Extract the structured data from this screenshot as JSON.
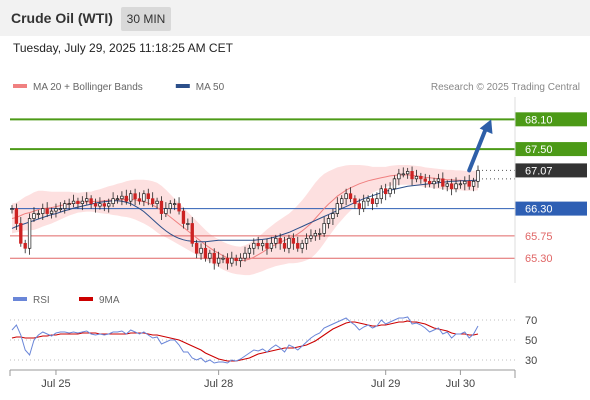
{
  "header": {
    "instrument": "Crude Oil (WTI)",
    "timeframe": "30 MIN"
  },
  "timestamp": "Tuesday, July 29, 2025 11:18:25 AM CET",
  "attribution": "Research © 2025 Trading Central",
  "colors": {
    "support": "#e06666",
    "resistance": "#4c9a17",
    "last_price": "#333333",
    "pivot": "#2e5fb4",
    "ma20": "#f08080",
    "ma50": "#2c4f8a",
    "bollinger_fill": "#fde0e0",
    "rsi": "#6a86d8",
    "rsi_ma": "#cc0000",
    "arrow": "#2e5fa8"
  },
  "chart_data": [
    {
      "type": "candlestick",
      "legend": [
        {
          "name": "MA 20 + Bollinger Bands",
          "color": "#f08080"
        },
        {
          "name": "MA 50",
          "color": "#2c4f8a"
        }
      ],
      "ylim": [
        64.8,
        68.55
      ],
      "x_ticks": [
        {
          "label": "Jul 25",
          "index": 10
        },
        {
          "label": "Jul 28",
          "index": 47
        },
        {
          "label": "Jul 29",
          "index": 85
        },
        {
          "label": "Jul 30",
          "index": 102
        }
      ],
      "levels": [
        {
          "label": "68.10",
          "value": 68.1,
          "kind": "resistance"
        },
        {
          "label": "67.50",
          "value": 67.5,
          "kind": "resistance"
        },
        {
          "label": "67.07",
          "value": 67.07,
          "kind": "last"
        },
        {
          "label": "66.30",
          "value": 66.3,
          "kind": "pivot"
        },
        {
          "label": "65.75",
          "value": 65.75,
          "kind": "support"
        },
        {
          "label": "65.30",
          "value": 65.3,
          "kind": "support"
        }
      ],
      "arrow": {
        "from_index": 104,
        "from_value": 67.07,
        "to_index": 109,
        "to_value": 68.1
      },
      "close": [
        66.3,
        66.0,
        65.6,
        65.5,
        66.1,
        66.2,
        66.2,
        66.3,
        66.2,
        66.25,
        66.3,
        66.3,
        66.4,
        66.4,
        66.45,
        66.4,
        66.45,
        66.5,
        66.4,
        66.35,
        66.4,
        66.35,
        66.4,
        66.5,
        66.5,
        66.55,
        66.45,
        66.6,
        66.5,
        66.45,
        66.6,
        66.5,
        66.4,
        66.45,
        66.2,
        66.3,
        66.4,
        66.4,
        66.25,
        66.0,
        66.0,
        65.6,
        65.4,
        65.5,
        65.3,
        65.4,
        65.2,
        65.3,
        65.3,
        65.2,
        65.3,
        65.25,
        65.3,
        65.4,
        65.5,
        65.6,
        65.55,
        65.6,
        65.5,
        65.6,
        65.7,
        65.6,
        65.5,
        65.7,
        65.6,
        65.5,
        65.6,
        65.7,
        65.75,
        65.8,
        65.8,
        66.0,
        66.1,
        66.2,
        66.4,
        66.5,
        66.6,
        66.5,
        66.4,
        66.3,
        66.45,
        66.5,
        66.4,
        66.5,
        66.7,
        66.6,
        66.7,
        66.9,
        67.0,
        67.0,
        67.05,
        66.9,
        66.95,
        66.9,
        66.85,
        66.8,
        66.85,
        66.9,
        66.75,
        66.8,
        66.7,
        66.8,
        66.8,
        66.85,
        66.75,
        66.85,
        67.07
      ],
      "ma20": [
        66.1,
        66.12,
        66.16,
        66.2,
        66.22,
        66.25,
        66.28,
        66.3,
        66.31,
        66.32,
        66.34,
        66.36,
        66.38,
        66.4,
        66.41,
        66.42,
        66.43,
        66.44,
        66.44,
        66.45,
        66.45,
        66.46,
        66.47,
        66.47,
        66.48,
        66.48,
        66.49,
        66.49,
        66.48,
        66.46,
        66.44,
        66.41,
        66.37,
        66.32,
        66.26,
        66.2,
        66.13,
        66.06,
        65.99,
        65.92,
        65.85,
        65.78,
        65.71,
        65.64,
        65.57,
        65.51,
        65.45,
        65.4,
        65.35,
        65.31,
        65.28,
        65.26,
        65.25,
        65.26,
        65.28,
        65.32,
        65.37,
        65.42,
        65.48,
        65.53,
        65.58,
        65.62,
        65.66,
        65.7,
        65.74,
        65.79,
        65.85,
        65.92,
        66.0,
        66.1,
        66.2,
        66.3,
        66.39,
        66.47,
        66.55,
        66.61,
        66.67,
        66.72,
        66.76,
        66.8,
        66.83,
        66.86,
        66.88,
        66.9,
        66.92,
        66.94,
        66.96,
        66.97,
        66.98,
        66.98,
        66.98,
        66.97,
        66.96,
        66.95,
        66.93,
        66.92,
        66.91,
        66.9,
        66.89,
        66.88,
        66.88,
        66.87,
        66.87,
        66.86,
        66.86,
        66.86,
        66.87
      ],
      "bb_width": [
        0.3,
        0.3,
        0.32,
        0.34,
        0.36,
        0.38,
        0.38,
        0.36,
        0.34,
        0.32,
        0.3,
        0.28,
        0.26,
        0.24,
        0.22,
        0.2,
        0.2,
        0.2,
        0.2,
        0.22,
        0.24,
        0.26,
        0.28,
        0.3,
        0.32,
        0.34,
        0.36,
        0.38,
        0.4,
        0.42,
        0.44,
        0.46,
        0.48,
        0.5,
        0.5,
        0.48,
        0.46,
        0.44,
        0.42,
        0.4,
        0.38,
        0.36,
        0.34,
        0.32,
        0.3,
        0.28,
        0.28,
        0.28,
        0.28,
        0.28,
        0.28,
        0.28,
        0.28,
        0.3,
        0.32,
        0.34,
        0.36,
        0.38,
        0.4,
        0.42,
        0.44,
        0.46,
        0.48,
        0.5,
        0.54,
        0.58,
        0.62,
        0.66,
        0.7,
        0.72,
        0.72,
        0.7,
        0.66,
        0.62,
        0.58,
        0.54,
        0.5,
        0.46,
        0.42,
        0.38,
        0.34,
        0.3,
        0.26,
        0.24,
        0.22,
        0.2,
        0.2,
        0.2,
        0.2,
        0.2,
        0.2,
        0.2,
        0.2,
        0.2,
        0.2,
        0.2,
        0.2,
        0.2,
        0.2,
        0.2,
        0.2,
        0.2,
        0.2,
        0.2,
        0.2,
        0.2,
        0.2
      ],
      "ma50": [
        65.9,
        65.94,
        65.97,
        66.0,
        66.03,
        66.06,
        66.09,
        66.12,
        66.15,
        66.18,
        66.2,
        66.23,
        66.26,
        66.28,
        66.31,
        66.33,
        66.35,
        66.37,
        66.39,
        66.41,
        66.43,
        66.44,
        66.45,
        66.46,
        66.46,
        66.45,
        66.43,
        66.4,
        66.35,
        66.3,
        66.24,
        66.16,
        66.08,
        66.0,
        65.92,
        65.85,
        65.79,
        65.74,
        65.7,
        65.67,
        65.65,
        65.64,
        65.63,
        65.63,
        65.63,
        65.64,
        65.65,
        65.66,
        65.66,
        65.66,
        65.66,
        65.66,
        65.66,
        65.66,
        65.66,
        65.66,
        65.67,
        65.68,
        65.69,
        65.71,
        65.73,
        65.76,
        65.79,
        65.82,
        65.86,
        65.9,
        65.94,
        65.98,
        66.02,
        66.06,
        66.1,
        66.14,
        66.18,
        66.22,
        66.26,
        66.3,
        66.34,
        66.38,
        66.42,
        66.46,
        66.5,
        66.53,
        66.56,
        66.59,
        66.62,
        66.65,
        66.67,
        66.69,
        66.71,
        66.73,
        66.75,
        66.76,
        66.77,
        66.78,
        66.79,
        66.8,
        66.81,
        66.82,
        66.83,
        66.84,
        66.85,
        66.85,
        66.86,
        66.86,
        66.86,
        66.87,
        66.87
      ]
    },
    {
      "type": "line",
      "legend": [
        {
          "name": "RSI",
          "color": "#6a86d8"
        },
        {
          "name": "9MA",
          "color": "#cc0000"
        }
      ],
      "ylim": [
        20,
        80
      ],
      "y_ticks": [
        70,
        50,
        30
      ],
      "reference_lines": [
        70,
        50,
        30
      ],
      "series": [
        {
          "name": "RSI",
          "values": [
            60,
            65,
            55,
            40,
            35,
            50,
            55,
            58,
            56,
            54,
            57,
            58,
            58,
            57,
            58,
            57,
            58,
            59,
            56,
            55,
            56,
            55,
            56,
            58,
            58,
            59,
            56,
            60,
            58,
            56,
            58,
            55,
            52,
            53,
            46,
            48,
            50,
            50,
            45,
            38,
            38,
            32,
            30,
            32,
            28,
            30,
            27,
            28,
            28,
            27,
            30,
            29,
            31,
            34,
            37,
            40,
            39,
            41,
            38,
            42,
            45,
            42,
            38,
            45,
            43,
            40,
            44,
            48,
            52,
            55,
            57,
            62,
            64,
            66,
            68,
            70,
            72,
            68,
            65,
            60,
            63,
            65,
            62,
            64,
            70,
            66,
            68,
            70,
            72,
            72,
            73,
            66,
            67,
            65,
            62,
            58,
            60,
            62,
            56,
            58,
            52,
            56,
            56,
            58,
            52,
            56,
            64
          ]
        },
        {
          "name": "9MA",
          "values": [
            52,
            53,
            53,
            52,
            52,
            52,
            53,
            54,
            54,
            55,
            55,
            56,
            56,
            56,
            56,
            56,
            57,
            57,
            57,
            57,
            56,
            56,
            56,
            56,
            56,
            56,
            56,
            57,
            57,
            57,
            57,
            56,
            55,
            55,
            54,
            53,
            52,
            51,
            50,
            48,
            46,
            44,
            42,
            40,
            37,
            35,
            33,
            31,
            30,
            29,
            29,
            29,
            30,
            31,
            32,
            34,
            36,
            37,
            38,
            39,
            40,
            41,
            42,
            42,
            42,
            43,
            44,
            45,
            47,
            49,
            52,
            55,
            58,
            61,
            63,
            65,
            67,
            68,
            68,
            67,
            66,
            65,
            64,
            64,
            65,
            65,
            66,
            67,
            68,
            68,
            69,
            68,
            68,
            67,
            66,
            64,
            62,
            61,
            60,
            59,
            57,
            56,
            56,
            56,
            55,
            55,
            56
          ]
        }
      ]
    }
  ]
}
